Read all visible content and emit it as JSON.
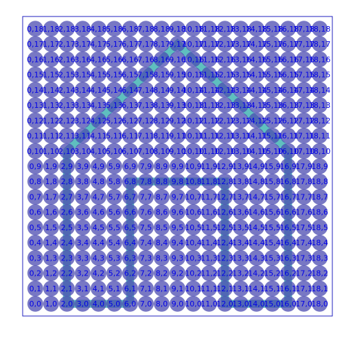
{
  "chart_data": {
    "type": "scatter",
    "title": "",
    "xlabel": "",
    "ylabel": "",
    "xlim": [
      -0.8,
      18.8
    ],
    "ylim": [
      -0.8,
      18.8
    ],
    "axes_visible": false,
    "frame": true,
    "grid": false,
    "grid_x_count": 19,
    "grid_y_count": 19,
    "marker_color": "#4b4bb0",
    "marker_opacity": 0.75,
    "label_color": "#0000e6",
    "label_format": "x,y",
    "frame_color": "#1f1fbf",
    "shape_color": "#5fbfbf",
    "background_shape": {
      "name": "house outline",
      "stroke_width_data": 0.5,
      "wall_left": 2,
      "wall_right": 16,
      "floor": 0,
      "eave": 10,
      "apex": [
        9,
        17
      ],
      "door": {
        "x0": 6,
        "x1": 12,
        "top": 8
      }
    }
  }
}
